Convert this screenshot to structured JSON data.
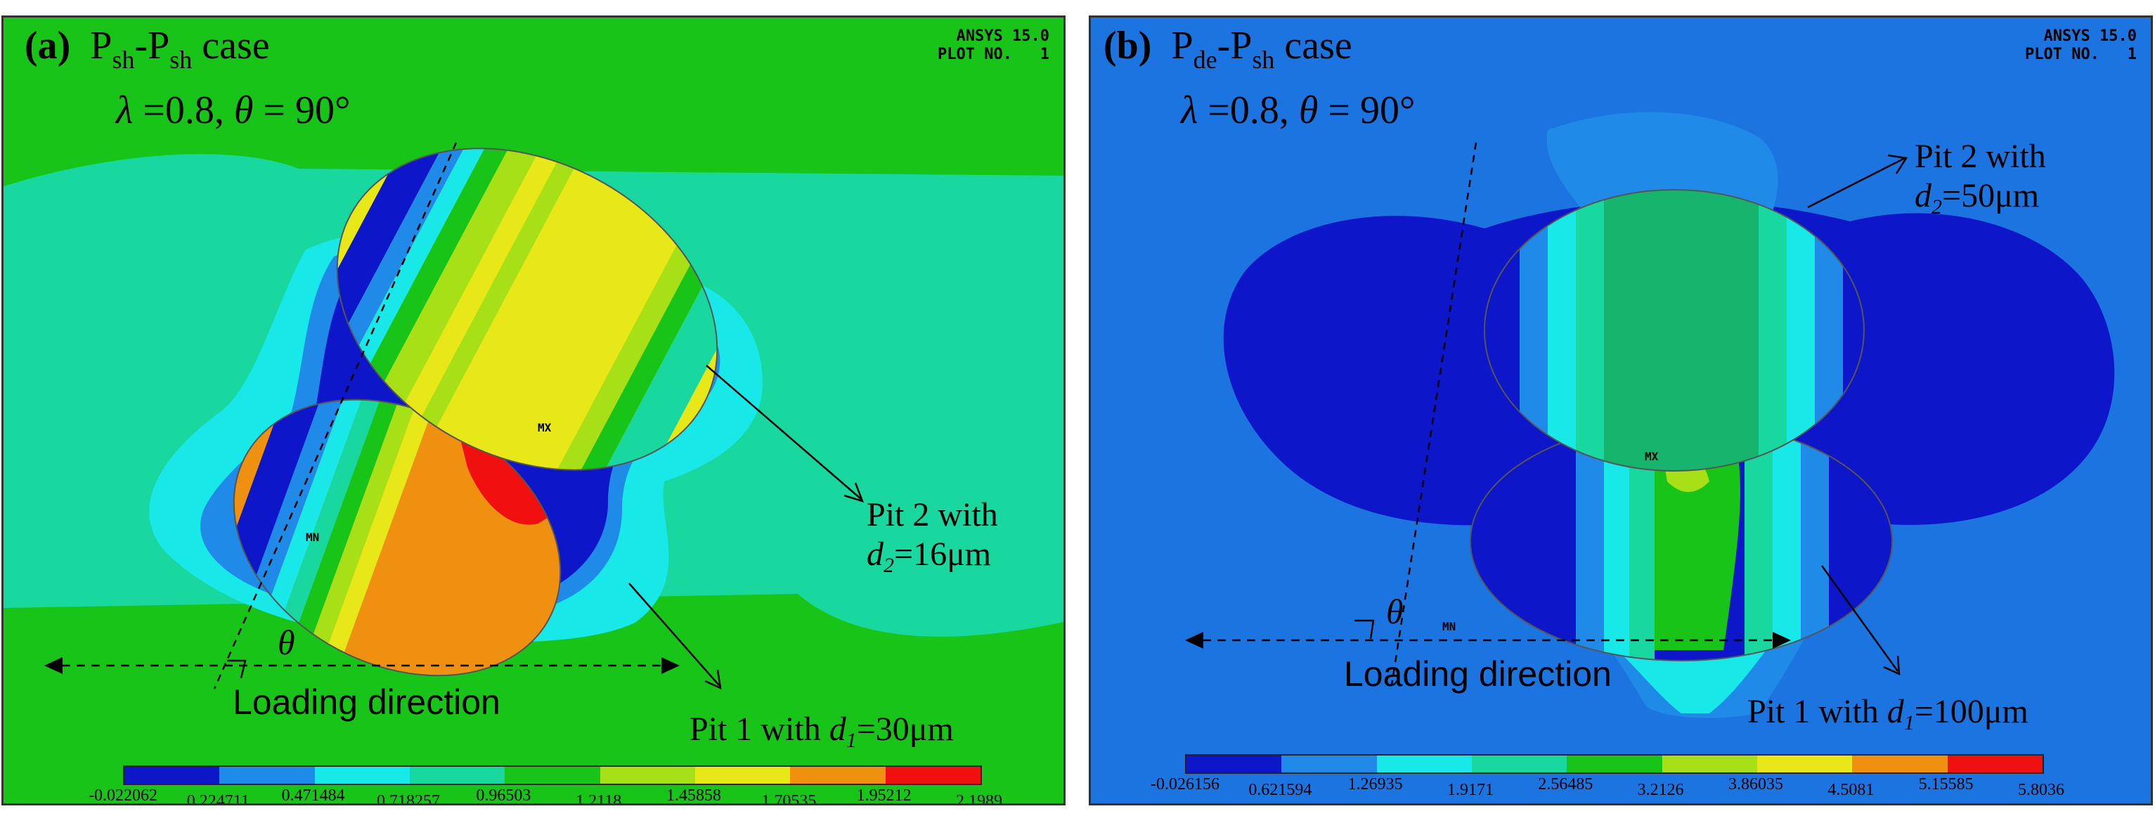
{
  "panel_a": {
    "tag": "(a)",
    "case_p1": "P",
    "case_s1": "sh",
    "case_dash": "-P",
    "case_s2": "sh",
    "case_tail": " case",
    "lambda": "λ",
    "lambda_val": " =0.8, ",
    "theta": "θ",
    "theta_val": " = 90°",
    "ansys_line1": "ANSYS 15.0",
    "ansys_line2": "PLOT NO.   1",
    "pit2_line1": "Pit 2 with",
    "pit2_d": "d",
    "pit2_sub": "2",
    "pit2_val": "=16μm",
    "pit1_pre": "Pit 1 with ",
    "pit1_d": "d",
    "pit1_sub": "1",
    "pit1_val": "=30μm",
    "loading": "Loading direction",
    "angle": "θ",
    "mx": "MX",
    "mn": "MN",
    "colorbar_colors": [
      "#0d16c8",
      "#1f8ae8",
      "#18e8e8",
      "#18d8a0",
      "#18c418",
      "#a8e018",
      "#e8e818",
      "#f09010",
      "#f01010"
    ],
    "colorbar_labels": [
      "-0.022062",
      "0.224711",
      "0.471484",
      "0.718257",
      "0.96503",
      "1.2118",
      "1.45858",
      "1.70535",
      "1.95212",
      "2.1989"
    ]
  },
  "panel_b": {
    "tag": "(b)",
    "case_p1": "P",
    "case_s1": "de",
    "case_dash": "-P",
    "case_s2": "sh",
    "case_tail": " case",
    "lambda": "λ",
    "lambda_val": " =0.8, ",
    "theta": "θ",
    "theta_val": " = 90°",
    "ansys_line1": "ANSYS 15.0",
    "ansys_line2": "PLOT NO.   1",
    "pit2_line1": "Pit 2 with",
    "pit2_d": "d",
    "pit2_sub": "2",
    "pit2_val": "=50μm",
    "pit1_pre": "Pit 1 with ",
    "pit1_d": "d",
    "pit1_sub": "1",
    "pit1_val": "=100μm",
    "loading": "Loading direction",
    "angle": "θ",
    "mx": "MX",
    "mn": "MN",
    "colorbar_colors": [
      "#0d16c8",
      "#1f8ae8",
      "#18e8e8",
      "#18d8a0",
      "#18c418",
      "#a8e018",
      "#e8e818",
      "#f09010",
      "#f01010"
    ],
    "colorbar_labels": [
      "-0.026156",
      "0.621594",
      "1.26935",
      "1.9171",
      "2.56485",
      "3.2126",
      "3.86035",
      "4.5081",
      "5.15585",
      "5.8036"
    ]
  }
}
